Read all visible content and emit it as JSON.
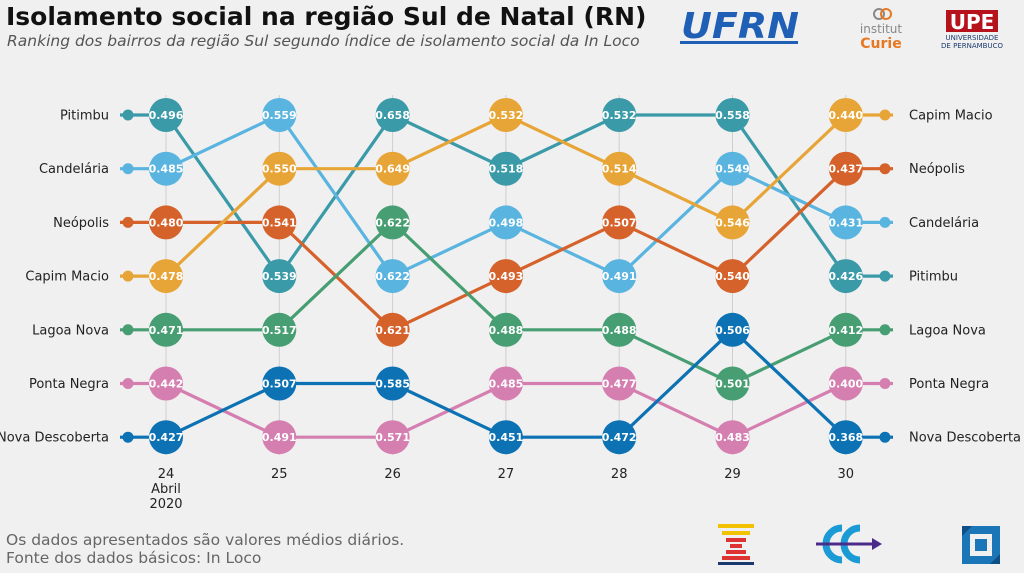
{
  "header": {
    "title": "Isolamento social na região Sul de Natal (RN)",
    "subtitle": "Ranking dos bairros da região Sul segundo índice de isolamento social da In Loco"
  },
  "footer": {
    "line1": "Os dados apresentados são valores médios diários.",
    "line2": "Fonte dos dados básicos: In Loco"
  },
  "logos": {
    "ufrn": {
      "text": "UFRN",
      "color": "#1f5fb5"
    },
    "curie": {
      "text_top": "institut",
      "text_bottom": "Curie",
      "color": "#e87722"
    },
    "upe": {
      "text": "UPE",
      "subtext_1": "UNIVERSIDADE",
      "subtext_2": "DE PERNAMBUCO",
      "color": "#b5121b"
    }
  },
  "chart_data": {
    "type": "bump",
    "x": [
      "24",
      "25",
      "26",
      "27",
      "28",
      "29",
      "30"
    ],
    "x_extra_labels": {
      "24": [
        "Abril",
        "2020"
      ]
    },
    "ranks": 7,
    "series": [
      {
        "name": "Pitimbu",
        "color": "#3a9aa8",
        "values": [
          0.496,
          0.539,
          0.658,
          0.518,
          0.532,
          0.558,
          0.426
        ],
        "ranks": [
          1,
          4,
          1,
          2,
          1,
          1,
          4
        ]
      },
      {
        "name": "Candelária",
        "color": "#5ab4e0",
        "values": [
          0.485,
          0.559,
          0.622,
          0.498,
          0.491,
          0.549,
          0.431
        ],
        "ranks": [
          2,
          1,
          4,
          3,
          4,
          2,
          3
        ]
      },
      {
        "name": "Neópolis",
        "color": "#d5622b",
        "values": [
          0.48,
          0.541,
          0.621,
          0.493,
          0.507,
          0.54,
          0.437
        ],
        "ranks": [
          3,
          3,
          5,
          4,
          3,
          4,
          2
        ]
      },
      {
        "name": "Capim Macio",
        "color": "#e8a537",
        "values": [
          0.478,
          0.55,
          0.649,
          0.532,
          0.514,
          0.546,
          0.44
        ],
        "ranks": [
          4,
          2,
          2,
          1,
          2,
          3,
          1
        ]
      },
      {
        "name": "Lagoa Nova",
        "color": "#469e72",
        "values": [
          0.471,
          0.517,
          0.622,
          0.488,
          0.488,
          0.501,
          0.412
        ],
        "ranks": [
          5,
          5,
          3,
          5,
          5,
          6,
          5
        ]
      },
      {
        "name": "Ponta Negra",
        "color": "#d57fb0",
        "values": [
          0.442,
          0.491,
          0.571,
          0.485,
          0.477,
          0.483,
          0.4
        ],
        "ranks": [
          6,
          7,
          7,
          6,
          6,
          7,
          6
        ]
      },
      {
        "name": "Nova Descoberta",
        "color": "#0c72b3",
        "values": [
          0.427,
          0.507,
          0.585,
          0.451,
          0.472,
          0.506,
          0.368
        ],
        "ranks": [
          7,
          6,
          6,
          7,
          7,
          5,
          7
        ]
      }
    ],
    "grid": "vertical"
  }
}
